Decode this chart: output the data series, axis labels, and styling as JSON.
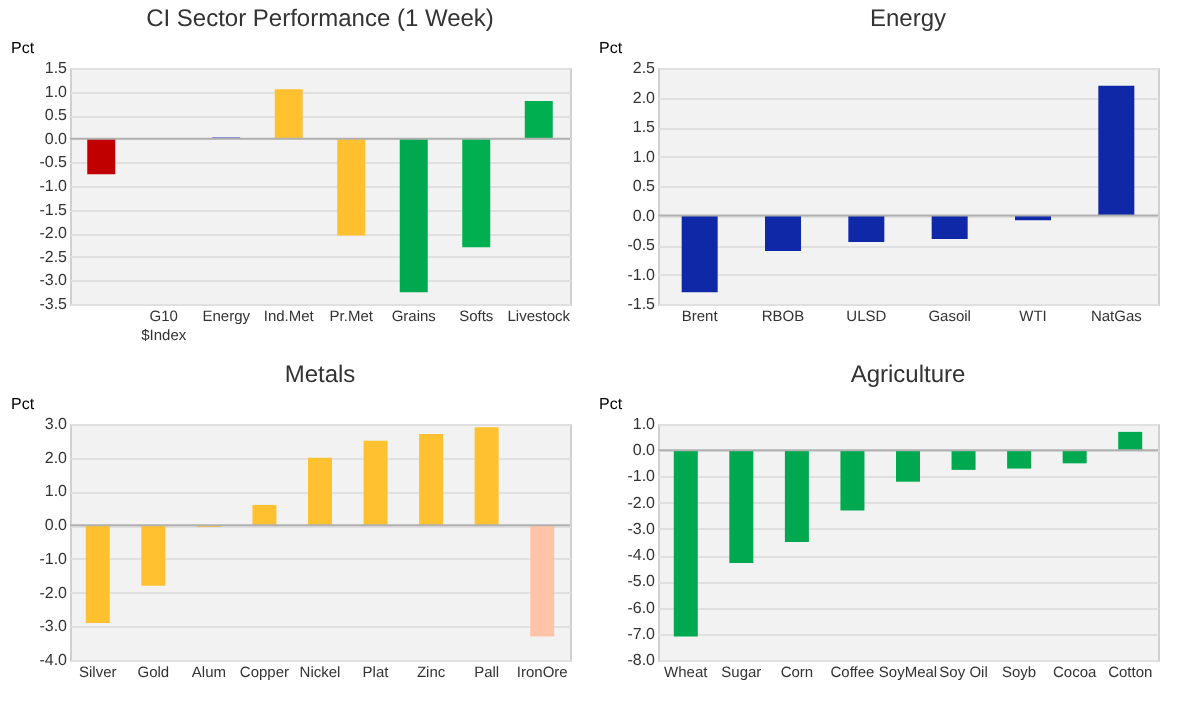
{
  "chart_data": [
    {
      "type": "bar",
      "title": "CI Sector Performance (1 Week)",
      "ylabel": "Pct",
      "grid": "y",
      "categories": [
        null,
        "G10\n$Index",
        "Energy",
        "Ind.Met",
        "Pr.Met",
        "Grains",
        "Softs",
        "Livestock"
      ],
      "values": [
        -0.75,
        0.0,
        0.03,
        1.05,
        -2.05,
        -3.25,
        -2.3,
        0.8
      ],
      "colors": [
        "#c00000",
        "#1f2fa8",
        "#2f46c0",
        "#ffc12f",
        "#ffc12f",
        "#00a84f",
        "#00b050",
        "#00b050"
      ],
      "ylim": [
        -3.5,
        1.5
      ],
      "yticks": [
        {
          "value": -3.5,
          "label": "-3.5"
        },
        {
          "value": -3,
          "label": "-3.0"
        },
        {
          "value": -2.5,
          "label": "-2.5"
        },
        {
          "value": -2,
          "label": "-2.0"
        },
        {
          "value": -1.5,
          "label": "-1.5"
        },
        {
          "value": -1,
          "label": "-1.0"
        },
        {
          "value": -0.5,
          "label": "-0.5"
        },
        {
          "value": 0,
          "label": "0.0"
        },
        {
          "value": 0.5,
          "label": "0.5"
        },
        {
          "value": 1,
          "label": "1.0"
        },
        {
          "value": 1.5,
          "label": "1.5"
        }
      ]
    },
    {
      "type": "bar",
      "title": "Energy",
      "ylabel": "Pct",
      "grid": "y",
      "categories": [
        "Brent",
        "RBOB",
        "ULSD",
        "Gasoil",
        "WTI",
        "NatGas"
      ],
      "values": [
        -1.3,
        -0.6,
        -0.45,
        -0.4,
        -0.08,
        2.2
      ],
      "colors": [
        "#0f28a8",
        "#0f28a8",
        "#0f28a8",
        "#0f28a8",
        "#0f28a8",
        "#0f28a8"
      ],
      "ylim": [
        -1.5,
        2.5
      ],
      "yticks": [
        {
          "value": -1.5,
          "label": "-1.5"
        },
        {
          "value": -1,
          "label": "-1.0"
        },
        {
          "value": -0.5,
          "label": "-0.5"
        },
        {
          "value": 0,
          "label": "0.0"
        },
        {
          "value": 0.5,
          "label": "0.5"
        },
        {
          "value": 1,
          "label": "1.0"
        },
        {
          "value": 1.5,
          "label": "1.5"
        },
        {
          "value": 2,
          "label": "2.0"
        },
        {
          "value": 2.5,
          "label": "2.5"
        }
      ]
    },
    {
      "type": "bar",
      "title": "Metals",
      "ylabel": "Pct",
      "grid": "y",
      "categories": [
        "Silver",
        "Gold",
        "Alum",
        "Copper",
        "Nickel",
        "Plat",
        "Zinc",
        "Pall",
        "IronOre"
      ],
      "values": [
        -2.9,
        -1.8,
        -0.05,
        0.6,
        2.0,
        2.5,
        2.7,
        2.9,
        -3.3
      ],
      "colors": [
        "#ffc12f",
        "#ffc12f",
        "#ffc12f",
        "#ffc12f",
        "#ffc12f",
        "#ffc12f",
        "#ffc12f",
        "#ffc12f",
        "#ffc4a8"
      ],
      "ylim": [
        -4,
        3
      ],
      "yticks": [
        {
          "value": -4,
          "label": "-4.0"
        },
        {
          "value": -3,
          "label": "-3.0"
        },
        {
          "value": -2,
          "label": "-2.0"
        },
        {
          "value": -1,
          "label": "-1.0"
        },
        {
          "value": 0,
          "label": "0.0"
        },
        {
          "value": 1,
          "label": "1.0"
        },
        {
          "value": 2,
          "label": "2.0"
        },
        {
          "value": 3,
          "label": "3.0"
        }
      ]
    },
    {
      "type": "bar",
      "title": "Agriculture",
      "ylabel": "Pct",
      "grid": "y",
      "categories": [
        "Wheat",
        "Sugar",
        "Corn",
        "Coffee",
        "SoyMeal",
        "Soy Oil",
        "Soyb",
        "Cocoa",
        "Cotton"
      ],
      "values": [
        -7.1,
        -4.3,
        -3.5,
        -2.3,
        -1.2,
        -0.75,
        -0.7,
        -0.5,
        0.7
      ],
      "colors": [
        "#00a84f",
        "#00a84f",
        "#00a84f",
        "#00a84f",
        "#00a84f",
        "#00a84f",
        "#00a84f",
        "#00a84f",
        "#00a84f"
      ],
      "ylim": [
        -8,
        1
      ],
      "yticks": [
        {
          "value": -8,
          "label": "-8.0"
        },
        {
          "value": -7,
          "label": "-7.0"
        },
        {
          "value": -6,
          "label": "-6.0"
        },
        {
          "value": -5,
          "label": "-5.0"
        },
        {
          "value": -4,
          "label": "-4.0"
        },
        {
          "value": -3,
          "label": "-3.0"
        },
        {
          "value": -2,
          "label": "-2.0"
        },
        {
          "value": -1,
          "label": "-1.0"
        },
        {
          "value": 0,
          "label": "0.0"
        },
        {
          "value": 1,
          "label": "1.0"
        }
      ]
    }
  ]
}
